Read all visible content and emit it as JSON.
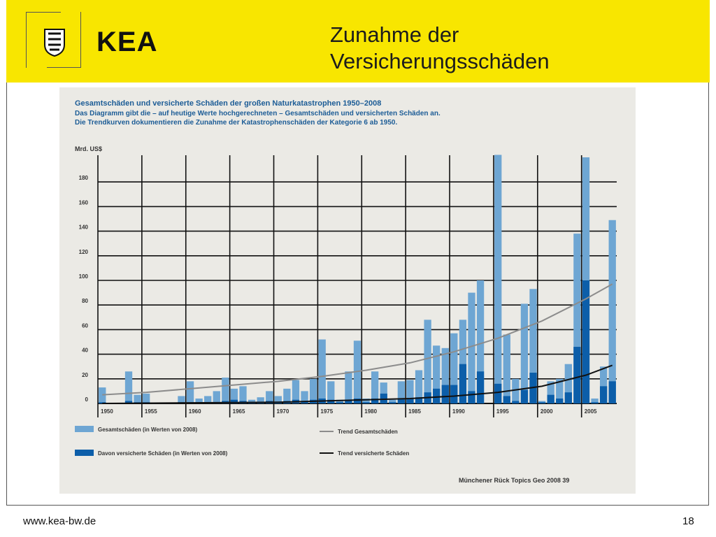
{
  "header": {
    "brand": "KEA",
    "title_line1": "Zunahme der",
    "title_line2": "Versicherungsschäden",
    "background_color": "#f8e600"
  },
  "logo": {
    "icon": "coat-of-arms-icon"
  },
  "footer": {
    "url": "www.kea-bw.de",
    "page_number": "18"
  },
  "source": "Münchener Rück Topics Geo 2008    39",
  "chart_data": {
    "type": "bar",
    "title": "Gesamtschäden und versicherte Schäden der großen Naturkatastrophen 1950–2008",
    "subtitle_line1": "Das Diagramm gibt die – auf heutige Werte hochgerechneten – Gesamtschäden und versicherten Schäden an.",
    "subtitle_line2": "Die Trendkurven dokumentieren die Zunahme der Katastrophenschäden der Kategorie 6 ab 1950.",
    "ylabel": "Mrd. US$",
    "ylim": [
      0,
      200
    ],
    "yticks": [
      0,
      20,
      40,
      60,
      80,
      100,
      120,
      140,
      160,
      180
    ],
    "xlim": [
      1949.5,
      2008.5
    ],
    "xticks": [
      1950,
      1955,
      1960,
      1965,
      1970,
      1975,
      1980,
      1985,
      1990,
      1995,
      2000,
      2005
    ],
    "grid": true,
    "colors": {
      "total": "#6ea6d3",
      "insured": "#0c5ea9",
      "trend_total": "#8c8c8c",
      "trend_insured": "#111111"
    },
    "legend": {
      "total": "Gesamtschäden (in Werten von 2008)",
      "insured": "Davon versicherte Schäden (in Werten von 2008)",
      "trend_total": "Trend Gesamtschäden",
      "trend_insured": "Trend versicherte Schäden"
    },
    "years": [
      1950,
      1951,
      1952,
      1953,
      1954,
      1955,
      1956,
      1957,
      1958,
      1959,
      1960,
      1961,
      1962,
      1963,
      1964,
      1965,
      1966,
      1967,
      1968,
      1969,
      1970,
      1971,
      1972,
      1973,
      1974,
      1975,
      1976,
      1977,
      1978,
      1979,
      1980,
      1981,
      1982,
      1983,
      1984,
      1985,
      1986,
      1987,
      1988,
      1989,
      1990,
      1991,
      1992,
      1993,
      1994,
      1995,
      1996,
      1997,
      1998,
      1999,
      2000,
      2001,
      2002,
      2003,
      2004,
      2005,
      2006,
      2007,
      2008
    ],
    "series": [
      {
        "name": "Gesamtschäden (in Werten von 2008)",
        "values": [
          13,
          0,
          0,
          26,
          7,
          8,
          0,
          0,
          0,
          6,
          18,
          4,
          6,
          10,
          21,
          12,
          14,
          3,
          5,
          10,
          6,
          12,
          19,
          10,
          20,
          52,
          18,
          3,
          26,
          51,
          4,
          26,
          17,
          3,
          18,
          19,
          27,
          68,
          47,
          45,
          57,
          68,
          90,
          100,
          0,
          202,
          56,
          20,
          81,
          93,
          2,
          18,
          20,
          32,
          138,
          200,
          4,
          30,
          149
        ]
      },
      {
        "name": "Davon versicherte Schäden (in Werten von 2008)",
        "values": [
          1,
          0,
          0,
          2,
          1,
          1,
          0,
          0,
          0,
          1,
          1,
          1,
          1,
          1,
          2,
          3,
          2,
          1,
          1,
          2,
          1,
          2,
          3,
          2,
          3,
          4,
          3,
          1,
          3,
          4,
          1,
          4,
          8,
          1,
          4,
          4,
          5,
          9,
          12,
          15,
          15,
          32,
          10,
          26,
          0,
          16,
          6,
          2,
          11,
          25,
          1,
          7,
          4,
          9,
          46,
          100,
          1,
          14,
          18
        ]
      }
    ],
    "trend_total": {
      "x": [
        1950,
        1955,
        1960,
        1965,
        1970,
        1975,
        1980,
        1985,
        1990,
        1995,
        2000,
        2005,
        2008
      ],
      "y": [
        7,
        9,
        12,
        15,
        18,
        22,
        27,
        33,
        42,
        53,
        67,
        85,
        97
      ]
    },
    "trend_insured": {
      "x": [
        1950,
        1960,
        1970,
        1975,
        1980,
        1985,
        1990,
        1995,
        2000,
        2005,
        2008
      ],
      "y": [
        0,
        0.5,
        1,
        2,
        3,
        4,
        6,
        9,
        14,
        23,
        31
      ]
    }
  }
}
